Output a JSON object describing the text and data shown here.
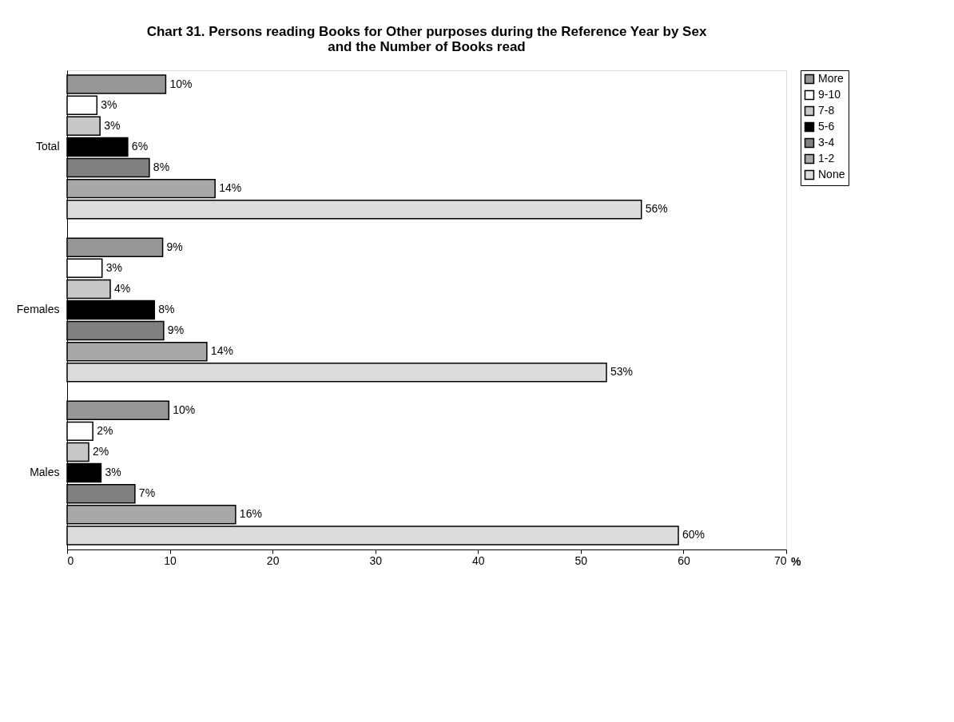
{
  "chart_data": {
    "type": "bar",
    "orientation": "horizontal",
    "title": "Chart 31.  Persons reading Books for Other purposes during the Reference Year by Sex and the Number of Books read",
    "xlabel": "%",
    "categories": [
      "Total",
      "Females",
      "Males"
    ],
    "series": [
      {
        "name": "More",
        "color": "#969696",
        "values": [
          9.6,
          9.3,
          9.9
        ],
        "value_labels": [
          "10%",
          "9%",
          "10%"
        ]
      },
      {
        "name": "9-10",
        "color": "#ffffff",
        "values": [
          2.9,
          3.4,
          2.5
        ],
        "value_labels": [
          "3%",
          "3%",
          "2%"
        ]
      },
      {
        "name": "7-8",
        "color": "#c8c8c8",
        "values": [
          3.2,
          4.2,
          2.1
        ],
        "value_labels": [
          "3%",
          "4%",
          "2%"
        ]
      },
      {
        "name": "5-6",
        "color": "#000000",
        "values": [
          5.9,
          8.5,
          3.3
        ],
        "value_labels": [
          "6%",
          "8%",
          "3%"
        ]
      },
      {
        "name": "3-4",
        "color": "#808080",
        "values": [
          8.0,
          9.4,
          6.6
        ],
        "value_labels": [
          "8%",
          "9%",
          "7%"
        ]
      },
      {
        "name": "1-2",
        "color": "#a8a8a8",
        "values": [
          14.4,
          13.6,
          16.4
        ],
        "value_labels": [
          "14%",
          "14%",
          "16%"
        ]
      },
      {
        "name": "None",
        "color": "#dcdcdc",
        "values": [
          55.9,
          52.5,
          59.5
        ],
        "value_labels": [
          "56%",
          "53%",
          "60%"
        ]
      }
    ],
    "xlim": [
      0,
      70
    ],
    "xticks": [
      0,
      10,
      20,
      30,
      40,
      50,
      60,
      70
    ],
    "grid": false,
    "legend": "right"
  }
}
